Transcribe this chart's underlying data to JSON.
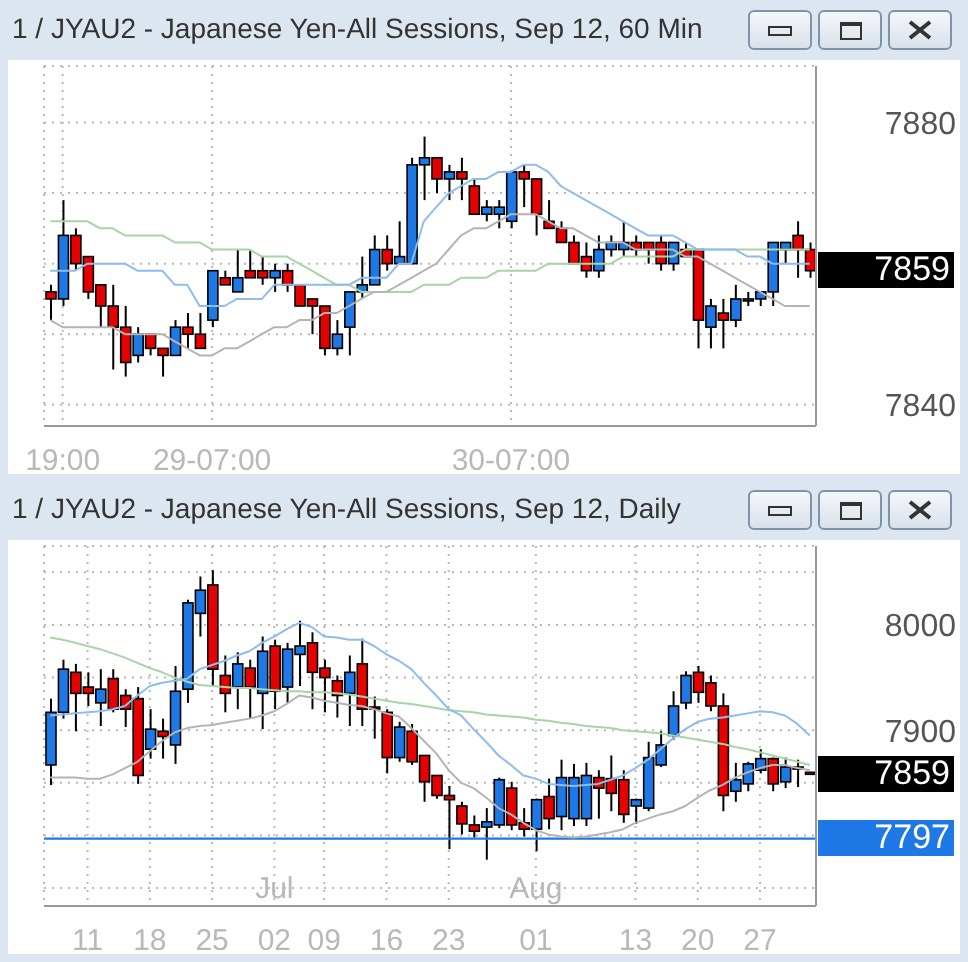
{
  "chart_data": [
    {
      "type": "candlestick",
      "title": "1 / JYAU2 - Japanese Yen-All Sessions, Sep 12, 60 Min",
      "categories": [
        null,
        "19:00",
        null,
        null,
        null,
        null,
        null,
        null,
        null,
        null,
        null,
        null,
        null,
        "29-07:00",
        null,
        null,
        null,
        null,
        null,
        null,
        null,
        null,
        null,
        null,
        null,
        null,
        null,
        null,
        null,
        null,
        null,
        null,
        null,
        null,
        null,
        null,
        null,
        "30-07:00",
        null,
        null,
        null,
        null,
        null,
        null,
        null,
        null,
        null,
        null,
        null,
        null,
        null,
        null,
        null,
        null,
        null,
        null,
        null,
        null,
        null,
        null,
        null,
        null
      ],
      "ylim": [
        7837,
        7888
      ],
      "yticks": [
        7840,
        {
          "value": 7850,
          "label": null
        },
        {
          "value": 7860,
          "label": null
        },
        {
          "value": 7870,
          "label": null
        },
        7880
      ],
      "grid": true,
      "series": [
        {
          "type": "line",
          "color": "#a8d4a8",
          "values": [
            7866,
            7866,
            7866,
            7866,
            7865,
            7865,
            7864,
            7864,
            7864,
            7864,
            7863,
            7863,
            7863,
            7862,
            7862,
            7862,
            7862,
            7861,
            7861,
            7861,
            7860,
            7859,
            7858,
            7857,
            7857,
            7856,
            7856,
            7856,
            7856,
            7856,
            7857,
            7857,
            7857,
            7858,
            7858,
            7858,
            7859,
            7859,
            7859,
            7859,
            7860,
            7860,
            7860,
            7860,
            7860,
            7860,
            7861,
            7861,
            7861,
            7861,
            7861,
            7862,
            7862,
            7862,
            7862,
            7862,
            7862,
            7862,
            7862,
            7862,
            7862,
            7862
          ]
        },
        {
          "type": "line",
          "color": "#b4b4b4",
          "values": [
            7852,
            7851,
            7851,
            7851,
            7851,
            7851,
            7850,
            7850,
            7850,
            7850,
            7849,
            7848,
            7847,
            7847,
            7848,
            7848,
            7849,
            7850,
            7851,
            7851,
            7852,
            7852,
            7853,
            7853,
            7854,
            7855,
            7856,
            7856,
            7857,
            7858,
            7859,
            7860,
            7862,
            7864,
            7865,
            7865,
            7866,
            7867,
            7867,
            7867,
            7866,
            7865,
            7865,
            7864,
            7863,
            7863,
            7863,
            7862,
            7862,
            7862,
            7862,
            7861,
            7861,
            7860,
            7859,
            7858,
            7857,
            7856,
            7855,
            7854,
            7854,
            7854
          ]
        },
        {
          "type": "line",
          "color": "#8fbcec",
          "values": [
            7859,
            7859,
            7859,
            7860,
            7860,
            7860,
            7860,
            7859,
            7859,
            7859,
            7857,
            7857,
            7854,
            7854,
            7854,
            7855,
            7855,
            7855,
            7857,
            7857,
            7857,
            7857,
            7857,
            7857,
            7857,
            7858,
            7858,
            7858,
            7860,
            7860,
            7866,
            7868,
            7870,
            7871,
            7872,
            7872,
            7873,
            7873,
            7874,
            7874,
            7873,
            7871,
            7870,
            7869,
            7868,
            7867,
            7866,
            7865,
            7864,
            7864,
            7864,
            7863,
            7862,
            7862,
            7862,
            7862,
            7861,
            7861,
            7860,
            7860,
            7860,
            7860
          ]
        },
        {
          "type": "candlestick",
          "ohlc": [
            [
              7856,
              7857,
              7852,
              7855
            ],
            [
              7855,
              7869,
              7854,
              7864
            ],
            [
              7864,
              7865,
              7859,
              7860
            ],
            [
              7861,
              7861,
              7855,
              7856
            ],
            [
              7857,
              7857,
              7851,
              7854
            ],
            [
              7854,
              7857,
              7845,
              7851
            ],
            [
              7851,
              7854,
              7844,
              7846
            ],
            [
              7847,
              7851,
              7846,
              7850
            ],
            [
              7850,
              7850,
              7847,
              7848
            ],
            [
              7848,
              7848,
              7844,
              7847
            ],
            [
              7847,
              7852,
              7847,
              7851
            ],
            [
              7851,
              7853,
              7848,
              7850
            ],
            [
              7850,
              7853,
              7848,
              7848
            ],
            [
              7852,
              7859,
              7851,
              7859
            ],
            [
              7858,
              7859,
              7857,
              7857
            ],
            [
              7856,
              7862,
              7856,
              7858
            ],
            [
              7859,
              7862,
              7858,
              7858
            ],
            [
              7859,
              7861,
              7857,
              7858
            ],
            [
              7858,
              7860,
              7856,
              7859
            ],
            [
              7859,
              7860,
              7856,
              7857
            ],
            [
              7857,
              7857,
              7854,
              7854
            ],
            [
              7855,
              7855,
              7850,
              7854
            ],
            [
              7854,
              7854,
              7847,
              7848
            ],
            [
              7848,
              7852,
              7847,
              7850
            ],
            [
              7851,
              7856,
              7847,
              7856
            ],
            [
              7856,
              7861,
              7855,
              7857
            ],
            [
              7857,
              7864,
              7857,
              7862
            ],
            [
              7862,
              7864,
              7859,
              7860
            ],
            [
              7860,
              7866,
              7860,
              7861
            ],
            [
              7860,
              7875,
              7860,
              7874
            ],
            [
              7874,
              7878,
              7869,
              7875
            ],
            [
              7875,
              7875,
              7870,
              7872
            ],
            [
              7872,
              7874,
              7869,
              7873
            ],
            [
              7873,
              7875,
              7869,
              7872
            ],
            [
              7871,
              7872,
              7867,
              7867
            ],
            [
              7867,
              7869,
              7866,
              7868
            ],
            [
              7867,
              7869,
              7865,
              7868
            ],
            [
              7866,
              7873,
              7865,
              7873
            ],
            [
              7873,
              7874,
              7868,
              7872
            ],
            [
              7872,
              7872,
              7864,
              7867
            ],
            [
              7866,
              7869,
              7865,
              7865
            ],
            [
              7865,
              7866,
              7863,
              7863
            ],
            [
              7863,
              7864,
              7860,
              7860
            ],
            [
              7861,
              7863,
              7858,
              7859
            ],
            [
              7859,
              7864,
              7858,
              7862
            ],
            [
              7862,
              7864,
              7861,
              7863
            ],
            [
              7862,
              7866,
              7861,
              7863
            ],
            [
              7863,
              7864,
              7861,
              7862
            ],
            [
              7863,
              7863,
              7860,
              7862
            ],
            [
              7863,
              7864,
              7859,
              7860
            ],
            [
              7860,
              7863,
              7859,
              7863
            ],
            [
              7862,
              7863,
              7861,
              7861
            ],
            [
              7862,
              7862,
              7848,
              7852
            ],
            [
              7851,
              7855,
              7848,
              7854
            ],
            [
              7853,
              7855,
              7848,
              7852
            ],
            [
              7852,
              7857,
              7851,
              7855
            ],
            [
              7855,
              7856,
              7854,
              7855
            ],
            [
              7855,
              7856,
              7854,
              7856
            ],
            [
              7856,
              7863,
              7854,
              7863
            ],
            [
              7862,
              7863,
              7860,
              7863
            ],
            [
              7864,
              7866,
              7858,
              7862
            ],
            [
              7862,
              7863,
              7858,
              7859
            ]
          ],
          "colors": [
            "#e60000",
            "#1e78e6",
            "#e60000",
            "#e60000",
            "#e60000",
            "#e60000",
            "#e60000",
            "#1e78e6",
            "#e60000",
            "#e60000",
            "#1e78e6",
            "#e60000",
            "#e60000",
            "#1e78e6",
            "#e60000",
            "#1e78e6",
            "#e60000",
            "#e60000",
            "#1e78e6",
            "#e60000",
            "#e60000",
            "#e60000",
            "#e60000",
            "#1e78e6",
            "#1e78e6",
            "#1e78e6",
            "#1e78e6",
            "#e60000",
            "#1e78e6",
            "#1e78e6",
            "#1e78e6",
            "#e60000",
            "#1e78e6",
            "#e60000",
            "#e60000",
            "#1e78e6",
            "#1e78e6",
            "#1e78e6",
            "#e60000",
            "#e60000",
            "#e60000",
            "#e60000",
            "#e60000",
            "#e60000",
            "#1e78e6",
            "#1e78e6",
            "#1e78e6",
            "#e60000",
            "#e60000",
            "#e60000",
            "#1e78e6",
            "#e60000",
            "#e60000",
            "#1e78e6",
            "#e60000",
            "#1e78e6",
            "#1e78e6",
            "#1e78e6",
            "#1e78e6",
            "#1e78e6",
            "#e60000",
            "#e60000"
          ]
        }
      ],
      "annotations": [
        "7859"
      ]
    },
    {
      "type": "candlestick",
      "title": "1 / JYAU2 - Japanese Yen-All Sessions, Sep 12, Daily",
      "categories": [
        null,
        null,
        null,
        "11",
        null,
        null,
        null,
        null,
        "18",
        null,
        null,
        null,
        null,
        "25",
        null,
        null,
        null,
        null,
        "Jul\n02",
        null,
        null,
        null,
        "09",
        null,
        null,
        null,
        null,
        "16",
        null,
        null,
        null,
        null,
        "23",
        null,
        null,
        null,
        null,
        null,
        null,
        "Aug\n01",
        null,
        null,
        null,
        null,
        null,
        null,
        null,
        "13",
        null,
        null,
        null,
        null,
        "20",
        null,
        null,
        null,
        null,
        "27",
        null,
        null,
        null,
        null
      ],
      "ylim": [
        7733,
        8075
      ],
      "yticks": [
        {
          "value": 7750,
          "label": null
        },
        {
          "value": 7800,
          "label": null
        },
        {
          "value": 7850,
          "label": null
        },
        7900,
        {
          "value": 7950,
          "label": null
        },
        8000,
        {
          "value": 8050,
          "label": null
        }
      ],
      "grid": true,
      "series": [
        {
          "type": "line",
          "color": "#a8d4a8",
          "values": [
            7988,
            7986,
            7983,
            7980,
            7977,
            7973,
            7969,
            7964,
            7959,
            7955,
            7950,
            7946,
            7943,
            7942,
            7941,
            7940,
            7940,
            7939,
            7938,
            7937,
            7937,
            7936,
            7936,
            7935,
            7934,
            7932,
            7930,
            7928,
            7926,
            7925,
            7923,
            7921,
            7919,
            7918,
            7917,
            7915,
            7914,
            7913,
            7912,
            7910,
            7909,
            7907,
            7906,
            7904,
            7903,
            7902,
            7900,
            7899,
            7898,
            7897,
            7895,
            7893,
            7891,
            7889,
            7887,
            7884,
            7882,
            7879,
            7876,
            7873,
            7870,
            7867
          ]
        },
        {
          "type": "line",
          "color": "#b4b4b4",
          "values": [
            7855,
            7855,
            7855,
            7854,
            7854,
            7858,
            7864,
            7870,
            7880,
            7890,
            7898,
            7902,
            7904,
            7905,
            7907,
            7909,
            7911,
            7914,
            7918,
            7925,
            7933,
            7931,
            7928,
            7926,
            7924,
            7923,
            7920,
            7916,
            7913,
            7902,
            7890,
            7878,
            7862,
            7850,
            7845,
            7836,
            7826,
            7820,
            7812,
            7805,
            7801,
            7799,
            7798,
            7799,
            7801,
            7803,
            7806,
            7812,
            7816,
            7820,
            7823,
            7828,
            7836,
            7843,
            7848,
            7855,
            7860,
            7864,
            7867,
            7867,
            7864,
            7862
          ]
        },
        {
          "type": "line",
          "color": "#8fbcec",
          "values": [
            7914,
            7915,
            7916,
            7917,
            7918,
            7920,
            7923,
            7933,
            7942,
            7945,
            7947,
            7949,
            7958,
            7962,
            7966,
            7971,
            7975,
            7983,
            7989,
            7996,
            8002,
            7998,
            7989,
            7988,
            7986,
            7986,
            7980,
            7972,
            7966,
            7958,
            7945,
            7933,
            7920,
            7914,
            7901,
            7889,
            7876,
            7867,
            7857,
            7854,
            7849,
            7848,
            7847,
            7848,
            7849,
            7853,
            7857,
            7864,
            7872,
            7882,
            7892,
            7901,
            7908,
            7911,
            7912,
            7914,
            7916,
            7918,
            7917,
            7914,
            7906,
            7895
          ]
        },
        {
          "type": "candlestick",
          "ohlc": [
            [
              7867,
              7930,
              7848,
              7917
            ],
            [
              7917,
              7967,
              7911,
              7958
            ],
            [
              7955,
              7963,
              7899,
              7935
            ],
            [
              7941,
              7955,
              7923,
              7935
            ],
            [
              7926,
              7958,
              7904,
              7939
            ],
            [
              7949,
              7958,
              7917,
              7920
            ],
            [
              7933,
              7939,
              7903,
              7920
            ],
            [
              7930,
              7941,
              7849,
              7857
            ],
            [
              7882,
              7920,
              7873,
              7901
            ],
            [
              7899,
              7911,
              7873,
              7894
            ],
            [
              7886,
              7961,
              7868,
              7937
            ],
            [
              7939,
              8024,
              7926,
              8021
            ],
            [
              8011,
              8046,
              7989,
              8033
            ],
            [
              8038,
              8052,
              7941,
              7958
            ],
            [
              7952,
              7971,
              7917,
              7935
            ],
            [
              7941,
              7974,
              7920,
              7963
            ],
            [
              7959,
              7967,
              7911,
              7941
            ],
            [
              7935,
              7989,
              7901,
              7975
            ],
            [
              7980,
              7986,
              7920,
              7937
            ],
            [
              7941,
              7983,
              7926,
              7977
            ],
            [
              7972,
              8004,
              7942,
              7980
            ],
            [
              7983,
              7993,
              7920,
              7955
            ],
            [
              7959,
              7967,
              7917,
              7950
            ],
            [
              7947,
              7952,
              7912,
              7933
            ],
            [
              7935,
              7971,
              7904,
              7955
            ],
            [
              7963,
              7987,
              7904,
              7920
            ],
            [
              7922,
              7932,
              7892,
              7921
            ],
            [
              7917,
              7920,
              7859,
              7874
            ],
            [
              7874,
              7908,
              7870,
              7903
            ],
            [
              7899,
              7906,
              7867,
              7870
            ],
            [
              7876,
              7876,
              7832,
              7851
            ],
            [
              7857,
              7857,
              7835,
              7838
            ],
            [
              7838,
              7847,
              7787,
              7834
            ],
            [
              7828,
              7832,
              7801,
              7811
            ],
            [
              7810,
              7819,
              7798,
              7804
            ],
            [
              7808,
              7826,
              7777,
              7813
            ],
            [
              7810,
              7855,
              7807,
              7853
            ],
            [
              7845,
              7851,
              7805,
              7810
            ],
            [
              7812,
              7826,
              7799,
              7806
            ],
            [
              7806,
              7835,
              7785,
              7834
            ],
            [
              7837,
              7854,
              7806,
              7816
            ],
            [
              7818,
              7872,
              7805,
              7855
            ],
            [
              7816,
              7868,
              7809,
              7855
            ],
            [
              7816,
              7869,
              7809,
              7857
            ],
            [
              7855,
              7862,
              7816,
              7845
            ],
            [
              7854,
              7876,
              7823,
              7840
            ],
            [
              7853,
              7862,
              7812,
              7820
            ],
            [
              7828,
              7835,
              7811,
              7834
            ],
            [
              7826,
              7889,
              7823,
              7874
            ],
            [
              7867,
              7899,
              7865,
              7886
            ],
            [
              7895,
              7937,
              7891,
              7923
            ],
            [
              7926,
              7956,
              7920,
              7952
            ],
            [
              7955,
              7961,
              7926,
              7936
            ],
            [
              7945,
              7952,
              7918,
              7923
            ],
            [
              7923,
              7935,
              7823,
              7838
            ],
            [
              7842,
              7869,
              7832,
              7853
            ],
            [
              7849,
              7870,
              7842,
              7868
            ],
            [
              7862,
              7882,
              7859,
              7873
            ],
            [
              7873,
              7874,
              7842,
              7849
            ],
            [
              7851,
              7874,
              7845,
              7865
            ],
            [
              7865,
              7872,
              7846,
              7864
            ],
            [
              7860,
              7860,
              7858,
              7859
            ]
          ],
          "colors": [
            "#1e78e6",
            "#1e78e6",
            "#e60000",
            "#e60000",
            "#1e78e6",
            "#e60000",
            "#e60000",
            "#e60000",
            "#1e78e6",
            "#e60000",
            "#1e78e6",
            "#1e78e6",
            "#1e78e6",
            "#e60000",
            "#e60000",
            "#1e78e6",
            "#e60000",
            "#1e78e6",
            "#e60000",
            "#1e78e6",
            "#1e78e6",
            "#e60000",
            "#e60000",
            "#e60000",
            "#1e78e6",
            "#e60000",
            "#e60000",
            "#e60000",
            "#1e78e6",
            "#e60000",
            "#e60000",
            "#e60000",
            "#e60000",
            "#e60000",
            "#e60000",
            "#1e78e6",
            "#1e78e6",
            "#e60000",
            "#e60000",
            "#1e78e6",
            "#e60000",
            "#1e78e6",
            "#1e78e6",
            "#1e78e6",
            "#e60000",
            "#e60000",
            "#e60000",
            "#1e78e6",
            "#1e78e6",
            "#1e78e6",
            "#1e78e6",
            "#1e78e6",
            "#e60000",
            "#e60000",
            "#e60000",
            "#1e78e6",
            "#1e78e6",
            "#1e78e6",
            "#e60000",
            "#1e78e6",
            "#e60000",
            "#e60000"
          ]
        }
      ],
      "ref_lines": [
        {
          "axis": "y",
          "value": 7797,
          "label": "7797",
          "color": "#1e78e6"
        }
      ],
      "annotations": [
        "7859"
      ]
    }
  ]
}
